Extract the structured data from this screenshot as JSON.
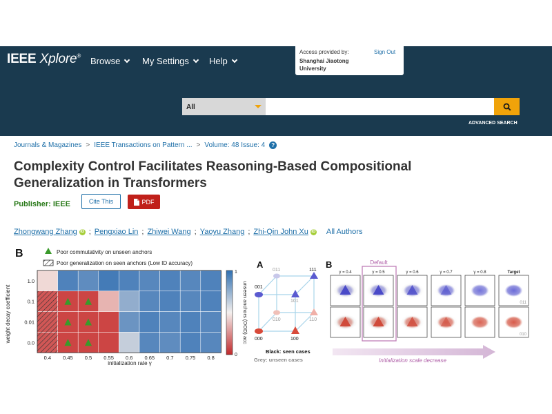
{
  "header": {
    "logo_main": "IEEE",
    "logo_x": "Xplore",
    "logo_reg": "®",
    "nav": [
      {
        "label": "Browse"
      },
      {
        "label": "My Settings"
      },
      {
        "label": "Help"
      }
    ],
    "access": {
      "label": "Access provided by:",
      "institution": "Shanghai Jiaotong University",
      "signout": "Sign Out"
    },
    "search": {
      "scope": "All",
      "placeholder": "",
      "advanced": "ADVANCED SEARCH"
    }
  },
  "breadcrumb": [
    {
      "label": "Journals & Magazines"
    },
    {
      "label": "IEEE Transactions on Pattern ..."
    },
    {
      "label": "Volume: 48 Issue: 4"
    }
  ],
  "article": {
    "title": "Complexity Control Facilitates Reasoning-Based Compositional Generalization in Transformers",
    "publisher": "Publisher:  IEEE",
    "cite_label": "Cite This",
    "pdf_label": "PDF",
    "authors": [
      {
        "name": "Zhongwang Zhang",
        "orcid": true
      },
      {
        "name": "Pengxiao Lin",
        "orcid": false
      },
      {
        "name": "Zhiwei Wang",
        "orcid": false
      },
      {
        "name": "Yaoyu Zhang",
        "orcid": false
      },
      {
        "name": "Zhi-Qin John Xu",
        "orcid": true
      }
    ],
    "all_authors": "All Authors"
  },
  "figure": {
    "left_panel_label": "B",
    "legend_triangle": "Poor commutativity on unseen anchors",
    "legend_hatch": "Poor generalization on seen anchors (Low ID accuracy)",
    "cube_label": "A",
    "right_panel_label": "B",
    "default_label": "Default",
    "cube_black": "Black: seen cases",
    "cube_grey": "Grey: unseen cases",
    "arrow_label": "Initialization scale decrease",
    "target_codes": [
      "011",
      "010"
    ],
    "cube_nodes": {
      "n011": "011",
      "n111": "111",
      "n001": "001",
      "n101": "101",
      "n010": "010",
      "n110": "110",
      "n000": "000",
      "n100": "100"
    }
  },
  "chart_data": {
    "type": "heatmap",
    "ylabel": "weight decay coefficient",
    "xlabel": "initialization rate γ",
    "colorbar_label": "unseen anchors (OOD) acc",
    "colorbar_ticks": [
      "1",
      "0"
    ],
    "x": [
      "0.4",
      "0.45",
      "0.5",
      "0.55",
      "0.6",
      "0.65",
      "0.7",
      "0.75",
      "0.8"
    ],
    "y": [
      "1.0",
      "0.1",
      "0.01",
      "0.0"
    ],
    "values": [
      [
        0.45,
        0.92,
        0.88,
        0.95,
        0.92,
        0.9,
        0.92,
        0.9,
        0.92
      ],
      [
        0.1,
        0.05,
        0.05,
        0.35,
        0.75,
        0.9,
        0.92,
        0.9,
        0.92
      ],
      [
        0.1,
        0.05,
        0.05,
        0.05,
        0.85,
        0.92,
        0.9,
        0.92,
        0.9
      ],
      [
        0.1,
        0.05,
        0.05,
        0.05,
        0.62,
        0.9,
        0.88,
        0.92,
        0.9
      ]
    ],
    "triangles": [
      [
        1,
        1
      ],
      [
        1,
        2
      ],
      [
        2,
        1
      ],
      [
        2,
        2
      ],
      [
        3,
        1
      ],
      [
        3,
        2
      ]
    ],
    "hatched": [
      [
        1,
        0
      ],
      [
        2,
        0
      ],
      [
        3,
        0
      ]
    ],
    "gamma_panels": [
      {
        "label": "γ = 0.4"
      },
      {
        "label": "γ = 0.5"
      },
      {
        "label": "γ = 0.6"
      },
      {
        "label": "γ = 0.7"
      },
      {
        "label": "γ = 0.8"
      },
      {
        "label": "Target"
      }
    ]
  },
  "colors": {
    "header_bg": "#1a3a4f",
    "accent": "#f0a30a",
    "link": "#1e6fa8",
    "pdf": "#c0201a",
    "publisher": "#2a7a1a"
  }
}
